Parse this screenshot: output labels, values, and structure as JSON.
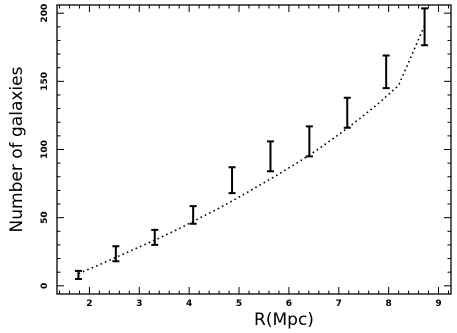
{
  "chart_data": {
    "type": "scatter",
    "title": "",
    "xlabel": "R(Mpc)",
    "ylabel": "Number of galaxies",
    "xlim": [
      1.35,
      9.25
    ],
    "ylim": [
      -6,
      206
    ],
    "x_ticks": [
      2,
      3,
      4,
      5,
      6,
      7,
      8,
      9
    ],
    "y_ticks": [
      0,
      50,
      100,
      150,
      200
    ],
    "x_tick_labels": [
      "2",
      "3",
      "4",
      "5",
      "6",
      "7",
      "8",
      "9"
    ],
    "y_tick_labels": [
      "0",
      "50",
      "100",
      "150",
      "200"
    ],
    "grid": false,
    "legend": "none",
    "series": [
      {
        "kind": "errorbar",
        "x": [
          1.78,
          2.53,
          3.31,
          4.08,
          4.86,
          5.63,
          6.41,
          7.17,
          7.95,
          8.72
        ],
        "y": [
          8,
          23.5,
          35.5,
          52,
          77.5,
          95,
          106,
          127,
          157,
          190
        ],
        "yerr_low": [
          3,
          5.5,
          5.5,
          6.5,
          9.5,
          11,
          11,
          11,
          12,
          13.5
        ],
        "yerr_high": [
          3,
          5.5,
          5.5,
          6.5,
          9.5,
          11,
          11,
          11,
          12,
          13.5
        ]
      },
      {
        "kind": "line",
        "style": "dotted",
        "x": [
          1.78,
          2.2,
          2.6,
          3.0,
          3.4,
          3.8,
          4.2,
          4.6,
          5.0,
          5.4,
          5.8,
          6.2,
          6.6,
          7.0,
          7.4,
          7.8,
          8.2,
          8.72
        ],
        "y": [
          9,
          15.5,
          22,
          28.5,
          35,
          42,
          49.5,
          57,
          65,
          73.5,
          82,
          91,
          100.5,
          111,
          122,
          134,
          147,
          191
        ]
      }
    ]
  }
}
